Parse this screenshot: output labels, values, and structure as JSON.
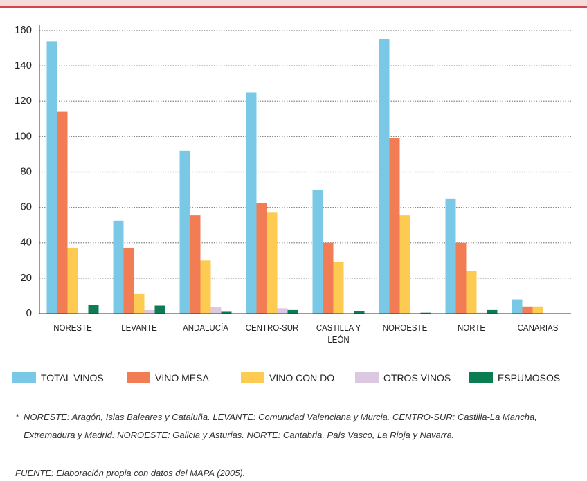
{
  "chart_data": {
    "type": "bar",
    "categories": [
      "NORESTE",
      "LEVANTE",
      "ANDALUCÍA",
      "CENTRO-SUR",
      "CASTILLA Y LEÓN",
      "NOROESTE",
      "NORTE",
      "CANARIAS"
    ],
    "series": [
      {
        "name": "TOTAL VINOS",
        "color": "#79c9e6",
        "values": [
          154,
          52.5,
          92,
          125,
          70,
          155,
          65,
          8
        ]
      },
      {
        "name": "VINO MESA",
        "color": "#f27d55",
        "values": [
          114,
          37,
          55.5,
          62.5,
          40,
          99,
          40,
          4
        ]
      },
      {
        "name": "VINO CON DO",
        "color": "#fdca52",
        "values": [
          37,
          11,
          30,
          57,
          29,
          55.5,
          24,
          4
        ]
      },
      {
        "name": "OTROS VINOS",
        "color": "#dcc8e2",
        "values": [
          0,
          2,
          3.5,
          3,
          0,
          0,
          0.5,
          0
        ]
      },
      {
        "name": "ESPUMOSOS",
        "color": "#0c7d52",
        "values": [
          5,
          4.5,
          1,
          2,
          1.5,
          0.5,
          2,
          0
        ]
      }
    ],
    "ylim": [
      0,
      160
    ],
    "yticks": [
      0,
      20,
      40,
      60,
      80,
      100,
      120,
      140,
      160
    ],
    "grid": true,
    "note_marker": "*",
    "note": "NORESTE: Aragón, Islas Baleares y Cataluña. LEVANTE: Comunidad Valenciana y Murcia. CENTRO-SUR: Castilla-La Mancha, Extremadura y Madrid. NOROESTE: Galicia y Asturias. NORTE: Cantabria, País Vasco, La Rioja y Navarra.",
    "source": "FUENTE: Elaboración propia con datos del MAPA (2005)."
  }
}
